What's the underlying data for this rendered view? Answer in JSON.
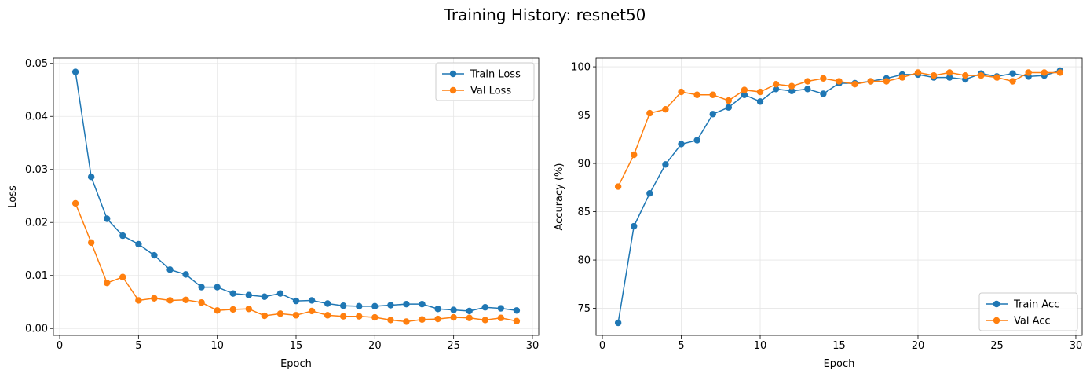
{
  "figure": {
    "suptitle": "Training History: resnet50"
  },
  "colors": {
    "train": "#1f77b4",
    "val": "#ff7f0e",
    "grid": "#e6e6e6",
    "axes": "#000000"
  },
  "chart_data": [
    {
      "type": "line",
      "title": "",
      "xlabel": "Epoch",
      "ylabel": "Loss",
      "xlim": [
        -0.4,
        30.4
      ],
      "ylim": [
        -0.0013,
        0.051
      ],
      "xticks": [
        0,
        5,
        10,
        15,
        20,
        25,
        30
      ],
      "yticks": [
        0.0,
        0.01,
        0.02,
        0.03,
        0.04,
        0.05
      ],
      "ytick_labels": [
        "0.00",
        "0.01",
        "0.02",
        "0.03",
        "0.04",
        "0.05"
      ],
      "grid": true,
      "legend_position": "upper right",
      "x": [
        1,
        2,
        3,
        4,
        5,
        6,
        7,
        8,
        9,
        10,
        11,
        12,
        13,
        14,
        15,
        16,
        17,
        18,
        19,
        20,
        21,
        22,
        23,
        24,
        25,
        26,
        27,
        28,
        29
      ],
      "series": [
        {
          "name": "Train Loss",
          "color": "#1f77b4",
          "values": [
            0.0484,
            0.0286,
            0.0207,
            0.0175,
            0.0159,
            0.0138,
            0.0111,
            0.0102,
            0.0078,
            0.0078,
            0.0066,
            0.0063,
            0.006,
            0.0066,
            0.0052,
            0.0053,
            0.0047,
            0.0043,
            0.0042,
            0.0042,
            0.0044,
            0.0046,
            0.0046,
            0.0037,
            0.0035,
            0.0033,
            0.004,
            0.0038,
            0.0034
          ]
        },
        {
          "name": "Val Loss",
          "color": "#ff7f0e",
          "values": [
            0.0236,
            0.0162,
            0.0086,
            0.0097,
            0.0053,
            0.0057,
            0.0053,
            0.0054,
            0.0049,
            0.0034,
            0.0036,
            0.0037,
            0.0024,
            0.0028,
            0.0025,
            0.0033,
            0.0025,
            0.0023,
            0.0023,
            0.0021,
            0.0016,
            0.0013,
            0.0017,
            0.0018,
            0.0021,
            0.002,
            0.0016,
            0.002,
            0.0014
          ]
        }
      ]
    },
    {
      "type": "line",
      "title": "",
      "xlabel": "Epoch",
      "ylabel": "Accuracy (%)",
      "xlim": [
        -0.4,
        30.4
      ],
      "ylim": [
        72.2,
        100.9
      ],
      "xticks": [
        0,
        5,
        10,
        15,
        20,
        25,
        30
      ],
      "yticks": [
        75,
        80,
        85,
        90,
        95,
        100
      ],
      "ytick_labels": [
        "75",
        "80",
        "85",
        "90",
        "95",
        "100"
      ],
      "grid": true,
      "legend_position": "lower right",
      "x": [
        1,
        2,
        3,
        4,
        5,
        6,
        7,
        8,
        9,
        10,
        11,
        12,
        13,
        14,
        15,
        16,
        17,
        18,
        19,
        20,
        21,
        22,
        23,
        24,
        25,
        26,
        27,
        28,
        29
      ],
      "series": [
        {
          "name": "Train Acc",
          "color": "#1f77b4",
          "values": [
            73.5,
            83.5,
            86.9,
            89.9,
            92.0,
            92.4,
            95.1,
            95.8,
            97.1,
            96.4,
            97.7,
            97.5,
            97.7,
            97.2,
            98.3,
            98.3,
            98.5,
            98.8,
            99.2,
            99.2,
            98.9,
            98.9,
            98.7,
            99.3,
            99.0,
            99.3,
            99.0,
            99.1,
            99.6
          ]
        },
        {
          "name": "Val Acc",
          "color": "#ff7f0e",
          "values": [
            87.6,
            90.9,
            95.2,
            95.6,
            97.4,
            97.1,
            97.1,
            96.5,
            97.6,
            97.4,
            98.2,
            98.0,
            98.5,
            98.8,
            98.5,
            98.2,
            98.5,
            98.5,
            98.9,
            99.4,
            99.1,
            99.4,
            99.1,
            99.1,
            98.9,
            98.5,
            99.4,
            99.4,
            99.4
          ]
        }
      ]
    }
  ]
}
